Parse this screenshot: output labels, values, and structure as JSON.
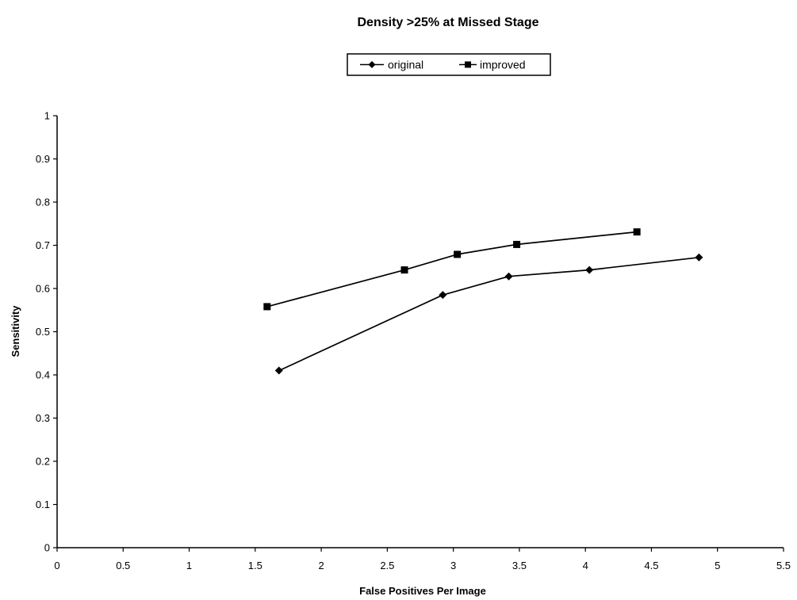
{
  "chart_data": {
    "type": "line",
    "title": "Density >25% at Missed Stage",
    "xlabel": "False Positives Per Image",
    "ylabel": "Sensitivity",
    "xlim": [
      0,
      5.5
    ],
    "ylim": [
      0,
      1
    ],
    "x_ticks": [
      "0",
      "0.5",
      "1",
      "1.5",
      "2",
      "2.5",
      "3",
      "3.5",
      "4",
      "4.5",
      "5",
      "5.5"
    ],
    "y_ticks": [
      "0",
      "0.1",
      "0.2",
      "0.3",
      "0.4",
      "0.5",
      "0.6",
      "0.7",
      "0.8",
      "0.9",
      "1"
    ],
    "grid": false,
    "legend_position": "top-center",
    "series": [
      {
        "name": "original",
        "marker": "diamond",
        "color": "#000000",
        "points": [
          [
            1.68,
            0.41
          ],
          [
            2.92,
            0.585
          ],
          [
            3.42,
            0.628
          ],
          [
            4.03,
            0.643
          ],
          [
            4.86,
            0.672
          ]
        ]
      },
      {
        "name": "improved",
        "marker": "square",
        "color": "#000000",
        "points": [
          [
            1.59,
            0.558
          ],
          [
            2.63,
            0.643
          ],
          [
            3.03,
            0.679
          ],
          [
            3.48,
            0.702
          ],
          [
            4.39,
            0.731
          ]
        ]
      }
    ]
  }
}
